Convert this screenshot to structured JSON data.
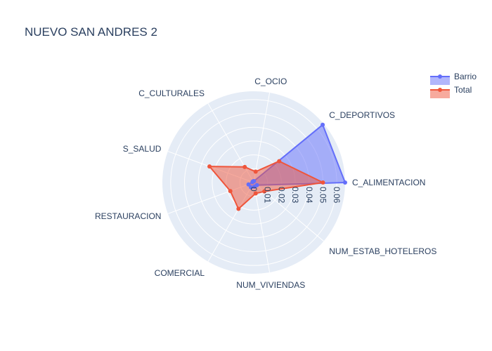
{
  "chart_data": {
    "type": "radar",
    "title": "NUEVO SAN ANDRES 2",
    "axes": [
      "C_ALIMENTACION",
      "C_DEPORTIVOS",
      "C_OCIO",
      "C_CULTURALES",
      "S_SALUD",
      "RESTAURACION",
      "COMERCIAL",
      "NUM_VIVIENDAS",
      "NUM_ESTAB_HOTELEROS"
    ],
    "radial_range": [
      0,
      0.066
    ],
    "radial_ticks": [
      "0",
      "0.01",
      "0.02",
      "0.03",
      "0.04",
      "0.05",
      "0.06"
    ],
    "radial_tick_values": [
      0,
      0.01,
      0.02,
      0.03,
      0.04,
      0.05,
      0.06
    ],
    "series": [
      {
        "name": "Barrio",
        "color": "#636efa",
        "values": [
          0.066,
          0.065,
          0.001,
          0.001,
          0.001,
          0.004,
          0.004,
          0.003,
          0.003
        ]
      },
      {
        "name": "Total",
        "color": "#ef553b",
        "values": [
          0.05,
          0.024,
          0.008,
          0.013,
          0.034,
          0.018,
          0.022,
          0.008,
          0.01
        ]
      }
    ],
    "legend_position": "top-right"
  }
}
